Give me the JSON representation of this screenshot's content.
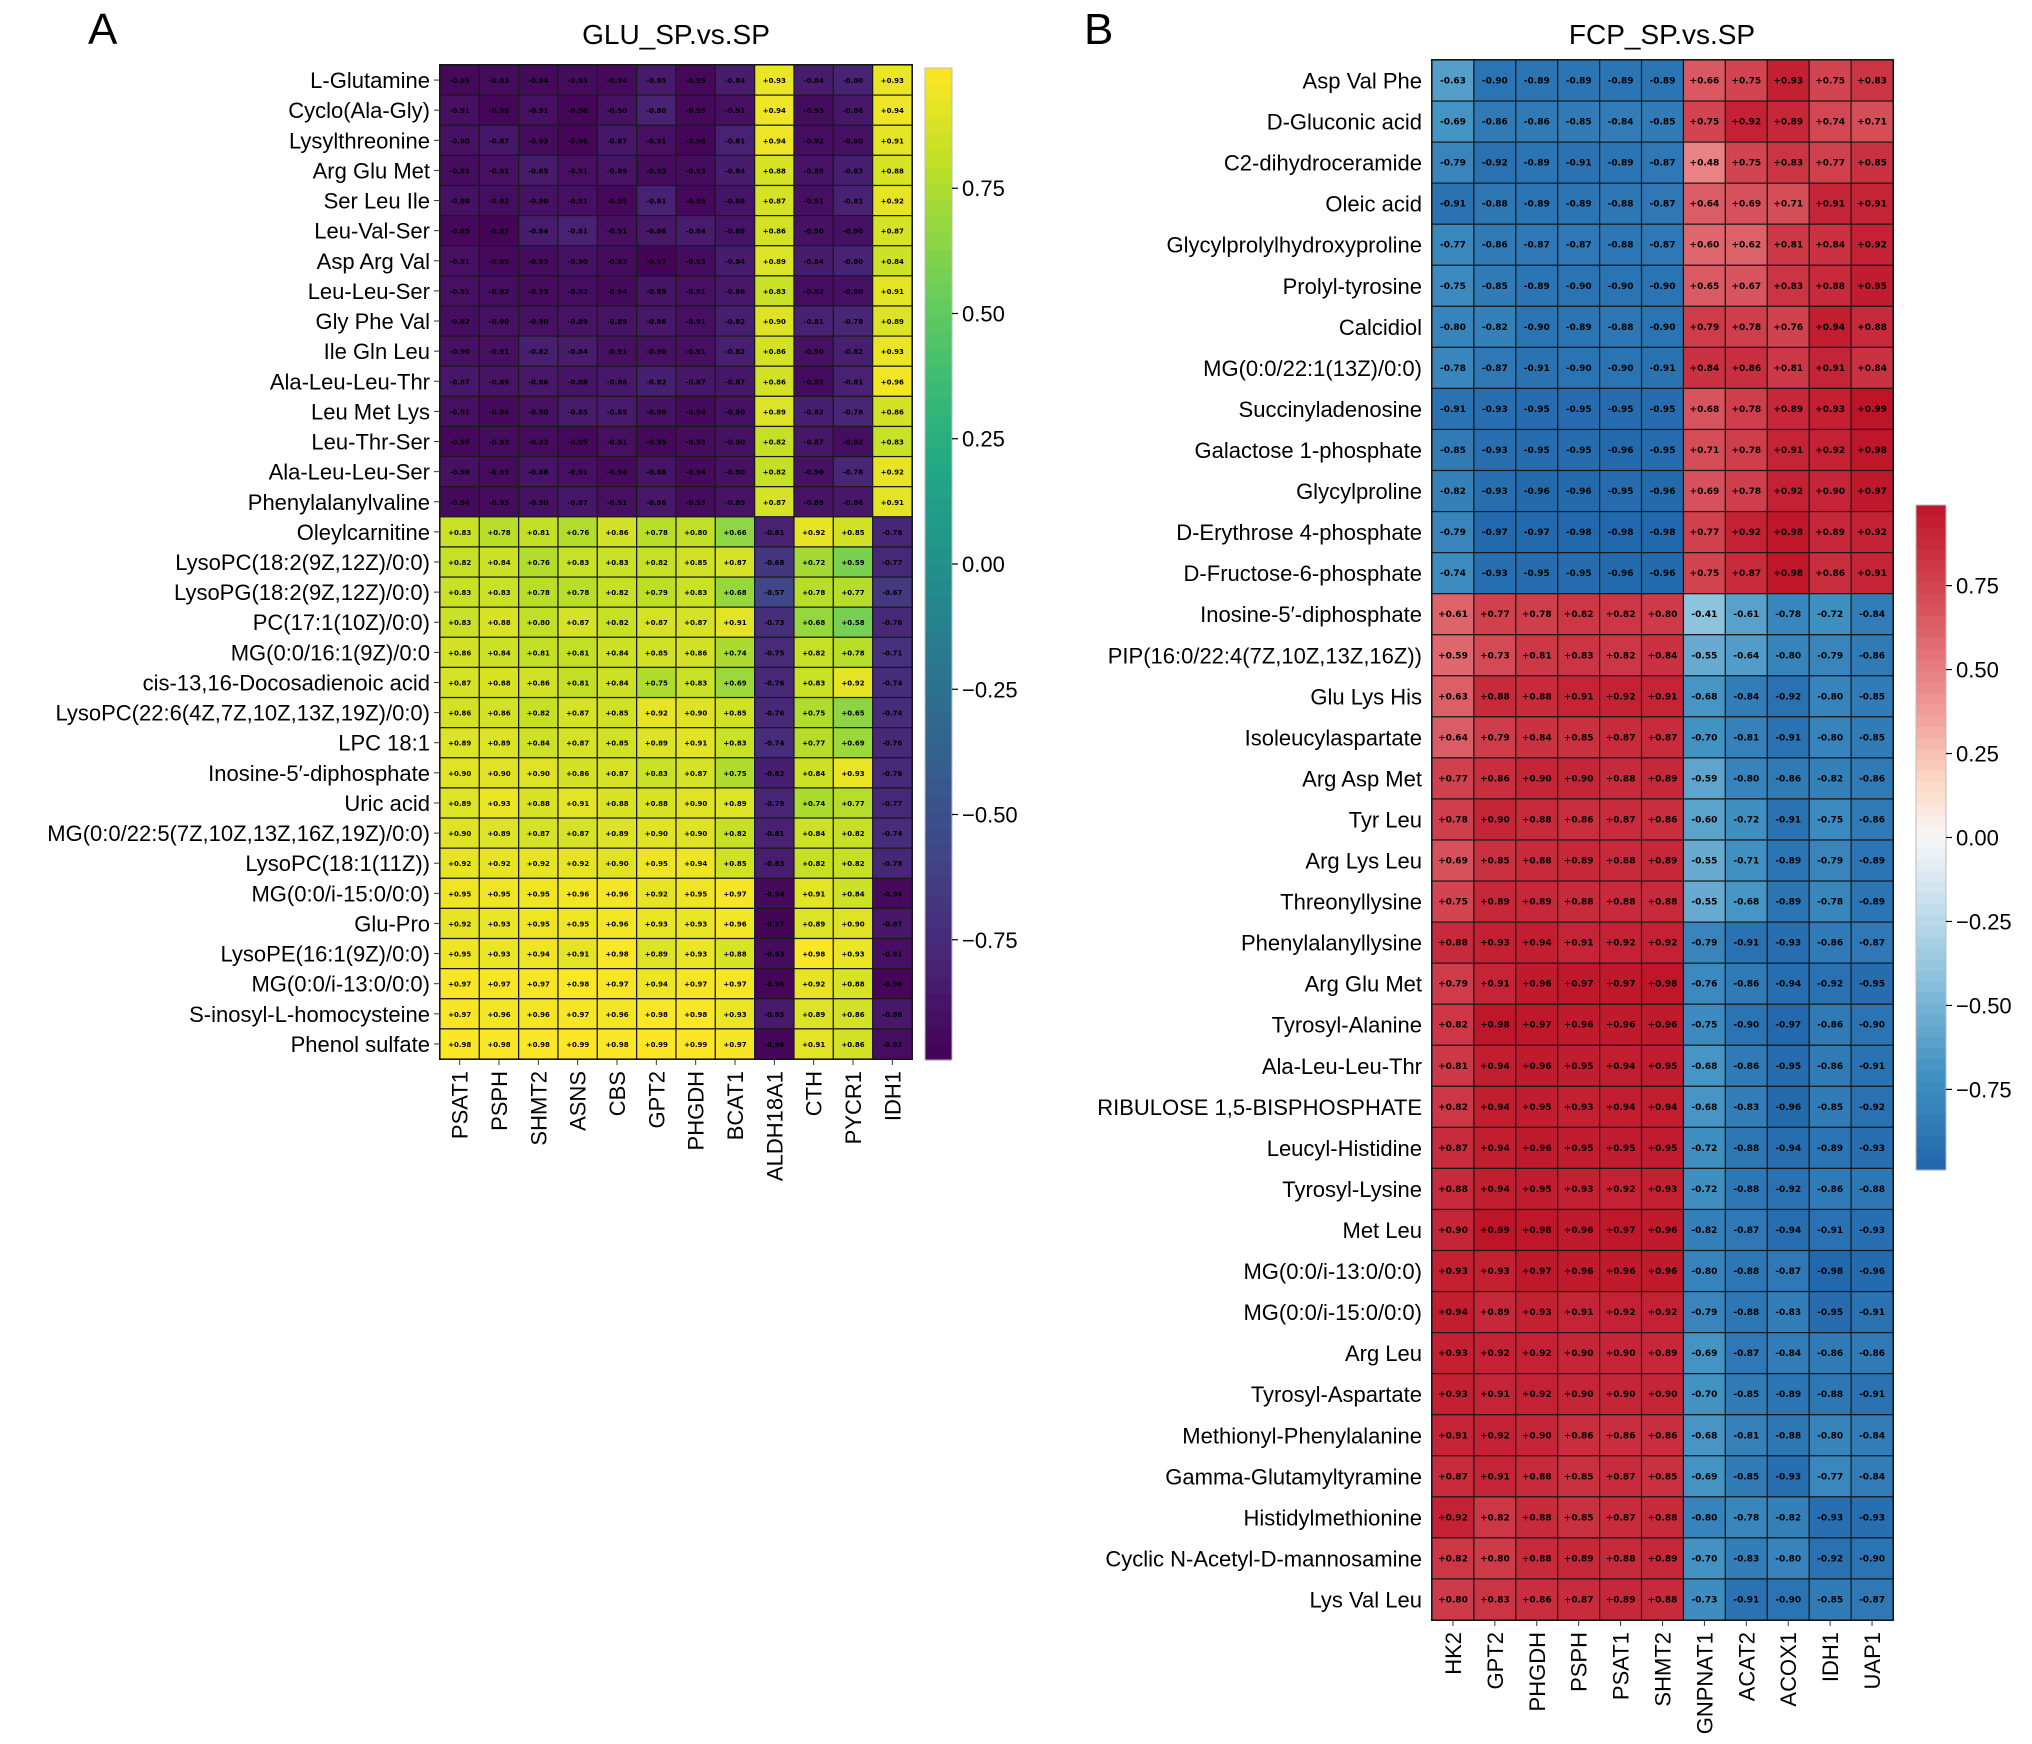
{
  "chart_data": [
    {
      "type": "heatmap",
      "panel_label": "A",
      "title": "GLU_SP.vs.SP",
      "colormap": "viridis",
      "vmin": -0.99,
      "vmax": 0.99,
      "colorbar_ticks": [
        "0.75",
        "0.50",
        "0.25",
        "0.00",
        "−0.25",
        "−0.50",
        "−0.75"
      ],
      "colorbar_tick_values": [
        0.75,
        0.5,
        0.25,
        0.0,
        -0.25,
        -0.5,
        -0.75
      ],
      "columns": [
        "PSAT1",
        "PSPH",
        "SHMT2",
        "ASNS",
        "CBS",
        "GPT2",
        "PHGDH",
        "BCAT1",
        "ALDH18A1",
        "CTH",
        "PYCR1",
        "IDH1"
      ],
      "rows": [
        "L-Glutamine",
        "Cyclo(Ala-Gly)",
        "Lysylthreonine",
        "Arg Glu Met",
        "Ser Leu Ile",
        "Leu-Val-Ser",
        "Asp Arg Val",
        "Leu-Leu-Ser",
        "Gly Phe Val",
        "Ile Gln Leu",
        "Ala-Leu-Leu-Thr",
        "Leu Met Lys",
        "Leu-Thr-Ser",
        "Ala-Leu-Leu-Ser",
        "Phenylalanylvaline",
        "Oleylcarnitine",
        "LysoPC(18:2(9Z,12Z)/0:0)",
        "LysoPG(18:2(9Z,12Z)/0:0)",
        "PC(17:1(10Z)/0:0)",
        "MG(0:0/16:1(9Z)/0:0",
        "cis-13,16-Docosadienoic acid",
        "LysoPC(22:6(4Z,7Z,10Z,13Z,19Z)/0:0)",
        "LPC 18:1",
        "Inosine-5′-diphosphate",
        "Uric acid",
        "MG(0:0/22:5(7Z,10Z,13Z,16Z,19Z)/0:0)",
        "LysoPC(18:1(11Z))",
        "MG(0:0/i-15:0/0:0)",
        "Glu-Pro",
        "LysoPE(16:1(9Z)/0:0)",
        "MG(0:0/i-13:0/0:0)",
        "S-inosyl-L-homocysteine",
        "Phenol sulfate"
      ],
      "values": [
        [
          -0.95,
          -0.93,
          -0.94,
          -0.93,
          -0.94,
          -0.85,
          -0.95,
          -0.84,
          0.93,
          -0.84,
          -0.8,
          0.93
        ],
        [
          -0.91,
          -0.96,
          -0.91,
          -0.96,
          -0.9,
          -0.8,
          -0.95,
          -0.91,
          0.94,
          -0.93,
          -0.86,
          0.94
        ],
        [
          -0.9,
          -0.87,
          -0.93,
          -0.96,
          -0.87,
          -0.91,
          -0.96,
          -0.81,
          0.94,
          -0.92,
          -0.9,
          0.91
        ],
        [
          -0.93,
          -0.91,
          -0.85,
          -0.91,
          -0.89,
          -0.93,
          -0.93,
          -0.84,
          0.88,
          -0.89,
          -0.83,
          0.88
        ],
        [
          -0.9,
          -0.92,
          -0.9,
          -0.91,
          -0.95,
          -0.81,
          -0.95,
          -0.88,
          0.87,
          -0.91,
          -0.81,
          0.92
        ],
        [
          -0.95,
          -0.97,
          -0.84,
          -0.81,
          -0.91,
          -0.86,
          -0.84,
          -0.88,
          0.86,
          -0.9,
          -0.9,
          0.87
        ],
        [
          -0.91,
          -0.95,
          -0.93,
          -0.9,
          -0.93,
          -0.97,
          -0.93,
          -0.84,
          0.89,
          -0.84,
          -0.8,
          0.84
        ],
        [
          -0.91,
          -0.92,
          -0.93,
          -0.92,
          -0.94,
          -0.89,
          -0.91,
          -0.86,
          0.83,
          -0.92,
          -0.9,
          0.91
        ],
        [
          -0.92,
          -0.9,
          -0.9,
          -0.89,
          -0.89,
          -0.86,
          -0.91,
          -0.82,
          0.9,
          -0.81,
          -0.78,
          0.89
        ],
        [
          -0.9,
          -0.91,
          -0.82,
          -0.84,
          -0.91,
          -0.9,
          -0.91,
          -0.82,
          0.86,
          -0.9,
          -0.82,
          0.93
        ],
        [
          -0.87,
          -0.89,
          -0.86,
          -0.88,
          -0.86,
          -0.82,
          -0.87,
          -0.87,
          0.86,
          -0.93,
          -0.81,
          0.96
        ],
        [
          -0.91,
          -0.94,
          -0.9,
          -0.85,
          -0.85,
          -0.9,
          -0.94,
          -0.9,
          0.89,
          -0.82,
          -0.78,
          0.86
        ],
        [
          -0.95,
          -0.93,
          -0.93,
          -0.95,
          -0.91,
          -0.95,
          -0.93,
          -0.9,
          0.82,
          -0.87,
          -0.92,
          0.83
        ],
        [
          -0.9,
          -0.93,
          -0.88,
          -0.91,
          -0.94,
          -0.88,
          -0.94,
          -0.9,
          0.82,
          -0.9,
          -0.78,
          0.92
        ],
        [
          -0.94,
          -0.93,
          -0.9,
          -0.87,
          -0.91,
          -0.86,
          -0.93,
          -0.89,
          0.87,
          -0.89,
          -0.86,
          0.91
        ],
        [
          0.83,
          0.78,
          0.81,
          0.76,
          0.86,
          0.78,
          0.8,
          0.66,
          -0.81,
          0.92,
          0.85,
          -0.78
        ],
        [
          0.82,
          0.84,
          0.76,
          0.83,
          0.83,
          0.82,
          0.85,
          0.87,
          -0.68,
          0.72,
          0.59,
          -0.77
        ],
        [
          0.83,
          0.83,
          0.78,
          0.78,
          0.82,
          0.79,
          0.83,
          0.68,
          -0.57,
          0.78,
          0.77,
          -0.67
        ],
        [
          0.83,
          0.88,
          0.8,
          0.87,
          0.82,
          0.87,
          0.87,
          0.91,
          -0.73,
          0.68,
          0.58,
          -0.76
        ],
        [
          0.86,
          0.84,
          0.81,
          0.81,
          0.84,
          0.85,
          0.86,
          0.74,
          -0.75,
          0.82,
          0.78,
          -0.71
        ],
        [
          0.87,
          0.88,
          0.86,
          0.81,
          0.84,
          0.75,
          0.83,
          0.69,
          -0.76,
          0.83,
          0.92,
          -0.74
        ],
        [
          0.86,
          0.86,
          0.82,
          0.87,
          0.85,
          0.92,
          0.9,
          0.85,
          -0.76,
          0.75,
          0.65,
          -0.74
        ],
        [
          0.89,
          0.89,
          0.84,
          0.87,
          0.85,
          0.89,
          0.91,
          0.83,
          -0.74,
          0.77,
          0.69,
          -0.76
        ],
        [
          0.9,
          0.9,
          0.9,
          0.86,
          0.87,
          0.83,
          0.87,
          0.75,
          -0.82,
          0.84,
          0.93,
          -0.76
        ],
        [
          0.89,
          0.93,
          0.88,
          0.91,
          0.88,
          0.88,
          0.9,
          0.89,
          -0.79,
          0.74,
          0.77,
          -0.77
        ],
        [
          0.9,
          0.89,
          0.87,
          0.87,
          0.89,
          0.9,
          0.9,
          0.82,
          -0.81,
          0.84,
          0.82,
          -0.74
        ],
        [
          0.92,
          0.92,
          0.92,
          0.92,
          0.9,
          0.95,
          0.94,
          0.85,
          -0.83,
          0.82,
          0.82,
          -0.78
        ],
        [
          0.95,
          0.95,
          0.95,
          0.96,
          0.96,
          0.92,
          0.95,
          0.97,
          -0.94,
          0.91,
          0.84,
          -0.94
        ],
        [
          0.92,
          0.93,
          0.95,
          0.95,
          0.96,
          0.93,
          0.93,
          0.96,
          -0.97,
          0.89,
          0.9,
          -0.87
        ],
        [
          0.95,
          0.93,
          0.94,
          0.91,
          0.98,
          0.89,
          0.93,
          0.88,
          -0.93,
          0.98,
          0.93,
          -0.91
        ],
        [
          0.97,
          0.97,
          0.97,
          0.98,
          0.97,
          0.94,
          0.97,
          0.97,
          -0.96,
          0.92,
          0.88,
          -0.96
        ],
        [
          0.97,
          0.96,
          0.96,
          0.97,
          0.96,
          0.98,
          0.98,
          0.93,
          -0.85,
          0.89,
          0.86,
          -0.86
        ],
        [
          0.98,
          0.98,
          0.98,
          0.99,
          0.98,
          0.99,
          0.99,
          0.97,
          -0.96,
          0.91,
          0.86,
          -0.92
        ]
      ]
    },
    {
      "type": "heatmap",
      "panel_label": "B",
      "title": "FCP_SP.vs.SP",
      "colormap": "RdBu_r",
      "vmin": -0.99,
      "vmax": 0.99,
      "colorbar_ticks": [
        "0.75",
        "0.50",
        "0.25",
        "0.00",
        "−0.25",
        "−0.50",
        "−0.75"
      ],
      "colorbar_tick_values": [
        0.75,
        0.5,
        0.25,
        0.0,
        -0.25,
        -0.5,
        -0.75
      ],
      "columns": [
        "HK2",
        "GPT2",
        "PHGDH",
        "PSPH",
        "PSAT1",
        "SHMT2",
        "GNPNAT1",
        "ACAT2",
        "ACOX1",
        "IDH1",
        "UAP1"
      ],
      "rows": [
        "Asp Val Phe",
        "D-Gluconic acid",
        "C2-dihydroceramide",
        "Oleic acid",
        "Glycylprolylhydroxyproline",
        "Prolyl-tyrosine",
        "Calcidiol",
        "MG(0:0/22:1(13Z)/0:0)",
        "Succinyladenosine",
        "Galactose 1-phosphate",
        "Glycylproline",
        "D-Erythrose 4-phosphate",
        "D-Fructose-6-phosphate",
        "Inosine-5′-diphosphate",
        "PIP(16:0/22:4(7Z,10Z,13Z,16Z))",
        "Glu Lys His",
        "Isoleucylaspartate",
        "Arg Asp Met",
        "Tyr Leu",
        "Arg Lys Leu",
        "Threonyllysine",
        "Phenylalanyllysine",
        "Arg Glu Met",
        "Tyrosyl-Alanine",
        "Ala-Leu-Leu-Thr",
        "RIBULOSE 1,5-BISPHOSPHATE",
        "Leucyl-Histidine",
        "Tyrosyl-Lysine",
        "Met Leu",
        "MG(0:0/i-13:0/0:0)",
        "MG(0:0/i-15:0/0:0)",
        "Arg Leu",
        "Tyrosyl-Aspartate",
        "Methionyl-Phenylalanine",
        "Gamma-Glutamyltyramine",
        "Histidylmethionine",
        "Cyclic N-Acetyl-D-mannosamine",
        "Lys Val Leu"
      ],
      "values": [
        [
          -0.63,
          -0.9,
          -0.89,
          -0.89,
          -0.89,
          -0.89,
          0.66,
          0.75,
          0.93,
          0.75,
          0.83
        ],
        [
          -0.69,
          -0.86,
          -0.86,
          -0.85,
          -0.84,
          -0.85,
          0.75,
          0.92,
          0.89,
          0.74,
          0.71
        ],
        [
          -0.79,
          -0.92,
          -0.89,
          -0.91,
          -0.89,
          -0.87,
          0.48,
          0.75,
          0.83,
          0.77,
          0.85
        ],
        [
          -0.91,
          -0.88,
          -0.89,
          -0.89,
          -0.88,
          -0.87,
          0.64,
          0.69,
          0.71,
          0.91,
          0.91
        ],
        [
          -0.77,
          -0.86,
          -0.87,
          -0.87,
          -0.88,
          -0.87,
          0.6,
          0.62,
          0.81,
          0.84,
          0.92
        ],
        [
          -0.75,
          -0.85,
          -0.89,
          -0.9,
          -0.9,
          -0.9,
          0.65,
          0.67,
          0.83,
          0.88,
          0.95
        ],
        [
          -0.8,
          -0.82,
          -0.9,
          -0.89,
          -0.88,
          -0.9,
          0.79,
          0.78,
          0.76,
          0.94,
          0.88
        ],
        [
          -0.78,
          -0.87,
          -0.91,
          -0.9,
          -0.9,
          -0.91,
          0.84,
          0.86,
          0.81,
          0.91,
          0.84
        ],
        [
          -0.91,
          -0.93,
          -0.95,
          -0.95,
          -0.95,
          -0.95,
          0.68,
          0.78,
          0.89,
          0.93,
          0.99
        ],
        [
          -0.85,
          -0.93,
          -0.95,
          -0.95,
          -0.96,
          -0.95,
          0.71,
          0.78,
          0.91,
          0.92,
          0.98
        ],
        [
          -0.82,
          -0.93,
          -0.96,
          -0.96,
          -0.95,
          -0.96,
          0.69,
          0.78,
          0.92,
          0.9,
          0.97
        ],
        [
          -0.79,
          -0.97,
          -0.97,
          -0.98,
          -0.98,
          -0.98,
          0.77,
          0.92,
          0.98,
          0.89,
          0.92
        ],
        [
          -0.74,
          -0.93,
          -0.95,
          -0.95,
          -0.96,
          -0.96,
          0.75,
          0.87,
          0.98,
          0.86,
          0.91
        ],
        [
          0.61,
          0.77,
          0.78,
          0.82,
          0.82,
          0.8,
          -0.41,
          -0.61,
          -0.78,
          -0.72,
          -0.84
        ],
        [
          0.59,
          0.73,
          0.81,
          0.83,
          0.82,
          0.84,
          -0.55,
          -0.64,
          -0.8,
          -0.79,
          -0.86
        ],
        [
          0.63,
          0.88,
          0.88,
          0.91,
          0.92,
          0.91,
          -0.68,
          -0.84,
          -0.92,
          -0.8,
          -0.85
        ],
        [
          0.64,
          0.79,
          0.84,
          0.85,
          0.87,
          0.87,
          -0.7,
          -0.81,
          -0.91,
          -0.8,
          -0.85
        ],
        [
          0.77,
          0.86,
          0.9,
          0.9,
          0.88,
          0.89,
          -0.59,
          -0.8,
          -0.86,
          -0.82,
          -0.86
        ],
        [
          0.78,
          0.9,
          0.88,
          0.86,
          0.87,
          0.86,
          -0.6,
          -0.72,
          -0.91,
          -0.75,
          -0.86
        ],
        [
          0.69,
          0.85,
          0.88,
          0.89,
          0.88,
          0.89,
          -0.55,
          -0.71,
          -0.89,
          -0.79,
          -0.89
        ],
        [
          0.75,
          0.89,
          0.89,
          0.88,
          0.88,
          0.88,
          -0.55,
          -0.68,
          -0.89,
          -0.78,
          -0.89
        ],
        [
          0.88,
          0.93,
          0.94,
          0.91,
          0.92,
          0.92,
          -0.79,
          -0.91,
          -0.93,
          -0.86,
          -0.87
        ],
        [
          0.79,
          0.91,
          0.96,
          0.97,
          0.97,
          0.98,
          -0.76,
          -0.86,
          -0.94,
          -0.92,
          -0.95
        ],
        [
          0.82,
          0.98,
          0.97,
          0.96,
          0.96,
          0.96,
          -0.75,
          -0.9,
          -0.97,
          -0.86,
          -0.9
        ],
        [
          0.81,
          0.94,
          0.96,
          0.95,
          0.94,
          0.95,
          -0.68,
          -0.86,
          -0.95,
          -0.86,
          -0.91
        ],
        [
          0.82,
          0.94,
          0.95,
          0.93,
          0.94,
          0.94,
          -0.68,
          -0.83,
          -0.96,
          -0.85,
          -0.92
        ],
        [
          0.87,
          0.94,
          0.96,
          0.95,
          0.95,
          0.95,
          -0.72,
          -0.88,
          -0.94,
          -0.89,
          -0.93
        ],
        [
          0.88,
          0.94,
          0.95,
          0.93,
          0.92,
          0.93,
          -0.72,
          -0.88,
          -0.92,
          -0.86,
          -0.88
        ],
        [
          0.9,
          0.99,
          0.98,
          0.96,
          0.97,
          0.96,
          -0.82,
          -0.87,
          -0.94,
          -0.91,
          -0.93
        ],
        [
          0.93,
          0.93,
          0.97,
          0.96,
          0.96,
          0.96,
          -0.8,
          -0.88,
          -0.87,
          -0.98,
          -0.96
        ],
        [
          0.94,
          0.89,
          0.93,
          0.91,
          0.92,
          0.92,
          -0.79,
          -0.88,
          -0.83,
          -0.95,
          -0.91
        ],
        [
          0.93,
          0.92,
          0.92,
          0.9,
          0.9,
          0.89,
          -0.69,
          -0.87,
          -0.84,
          -0.86,
          -0.86
        ],
        [
          0.93,
          0.91,
          0.92,
          0.9,
          0.9,
          0.9,
          -0.7,
          -0.85,
          -0.89,
          -0.88,
          -0.91
        ],
        [
          0.91,
          0.92,
          0.9,
          0.86,
          0.86,
          0.86,
          -0.68,
          -0.81,
          -0.88,
          -0.8,
          -0.84
        ],
        [
          0.87,
          0.91,
          0.88,
          0.85,
          0.87,
          0.85,
          -0.69,
          -0.85,
          -0.93,
          -0.77,
          -0.84
        ],
        [
          0.92,
          0.82,
          0.88,
          0.85,
          0.87,
          0.88,
          -0.8,
          -0.78,
          -0.82,
          -0.93,
          -0.93
        ],
        [
          0.82,
          0.8,
          0.88,
          0.89,
          0.88,
          0.89,
          -0.7,
          -0.83,
          -0.8,
          -0.92,
          -0.9
        ],
        [
          0.8,
          0.83,
          0.86,
          0.87,
          0.89,
          0.88,
          -0.73,
          -0.91,
          -0.9,
          -0.85,
          -0.87
        ]
      ]
    }
  ]
}
